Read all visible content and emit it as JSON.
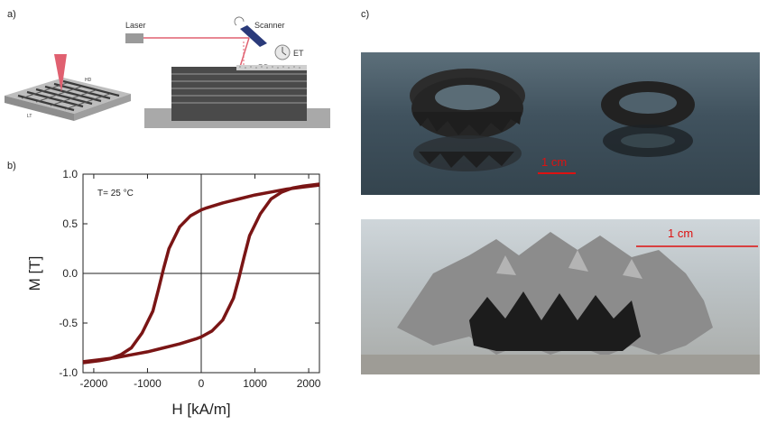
{
  "panel_labels": {
    "a": "a)",
    "b": "b)",
    "c": "c)"
  },
  "schematic": {
    "laser_label": "Laser",
    "scanner_label": "Scanner",
    "et_label": "ET",
    "pd_label": "PD",
    "hd_label": "HD",
    "lt_label": "LT"
  },
  "photos": {
    "scale_top": "1 cm",
    "scale_bottom": "1 cm"
  },
  "chart_data": {
    "type": "line",
    "annotation": "T= 25 °C",
    "xlabel": "H [kA/m]",
    "ylabel": "M [T]",
    "xlim": [
      -2200,
      2200
    ],
    "ylim": [
      -1.0,
      1.0
    ],
    "xticks": [
      -2000,
      -1000,
      0,
      1000,
      2000
    ],
    "yticks": [
      -1.0,
      -0.5,
      0.0,
      0.5,
      1.0
    ],
    "xtick_labels": [
      "-2000",
      "-1000",
      "0",
      "1000",
      "2000"
    ],
    "ytick_labels": [
      "-1.0",
      "-0.5",
      "0.0",
      "0.5",
      "1.0"
    ],
    "grid": false,
    "zero_lines": true,
    "series": [
      {
        "color": "#7a1515",
        "x": [
          2200,
          1900,
          1600,
          1300,
          1000,
          700,
          400,
          100,
          0,
          -200,
          -400,
          -600,
          -700,
          -800,
          -900,
          -1100,
          -1300,
          -1500,
          -1700,
          -1900,
          -2200
        ],
        "y": [
          0.89,
          0.87,
          0.85,
          0.82,
          0.79,
          0.75,
          0.71,
          0.66,
          0.64,
          0.58,
          0.47,
          0.25,
          0.05,
          -0.17,
          -0.38,
          -0.6,
          -0.75,
          -0.82,
          -0.86,
          -0.88,
          -0.9
        ]
      },
      {
        "color": "#7a1515",
        "x": [
          -2200,
          -1900,
          -1600,
          -1300,
          -1000,
          -700,
          -400,
          -100,
          0,
          200,
          400,
          600,
          700,
          800,
          900,
          1100,
          1300,
          1500,
          1700,
          1900,
          2200
        ],
        "y": [
          -0.89,
          -0.87,
          -0.85,
          -0.82,
          -0.79,
          -0.75,
          -0.71,
          -0.66,
          -0.64,
          -0.58,
          -0.47,
          -0.25,
          -0.05,
          0.17,
          0.38,
          0.6,
          0.75,
          0.82,
          0.86,
          0.88,
          0.9
        ]
      }
    ]
  },
  "colors": {
    "curve": "#7a1515",
    "laser_beam": "#e06070",
    "scale_bar": "#d11"
  }
}
